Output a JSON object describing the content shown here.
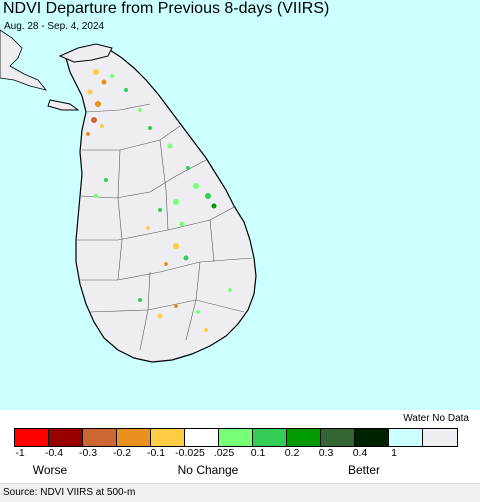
{
  "title": "NDVI Departure from Previous 8-days (VIIRS)",
  "subtitle": "Aug. 28 - Sep. 4, 2024",
  "source": "Source: NDVI VIIRS at 500-m",
  "colors": {
    "water": "#ccffff",
    "land": "#eeeef2",
    "boundary": "#555555"
  },
  "legend": {
    "water_no_data_label": "Water No Data",
    "swatches": [
      {
        "color": "#ff0000"
      },
      {
        "color": "#990000"
      },
      {
        "color": "#cc6633"
      },
      {
        "color": "#e89020"
      },
      {
        "color": "#ffcc44"
      },
      {
        "color": "#ffffff"
      },
      {
        "color": "#77ff77"
      },
      {
        "color": "#33cc55"
      },
      {
        "color": "#009900"
      },
      {
        "color": "#336633"
      },
      {
        "color": "#002200"
      },
      {
        "color": "#ccffff"
      },
      {
        "color": "#eeeef2"
      }
    ],
    "ticks": [
      "-1",
      "-0.4",
      "-0.3",
      "-0.2",
      "-0.1",
      "-0.025",
      ".025",
      "0.1",
      "0.2",
      "0.3",
      "0.4",
      "1"
    ],
    "categories": [
      "Worse",
      "No Change",
      "Better"
    ]
  }
}
